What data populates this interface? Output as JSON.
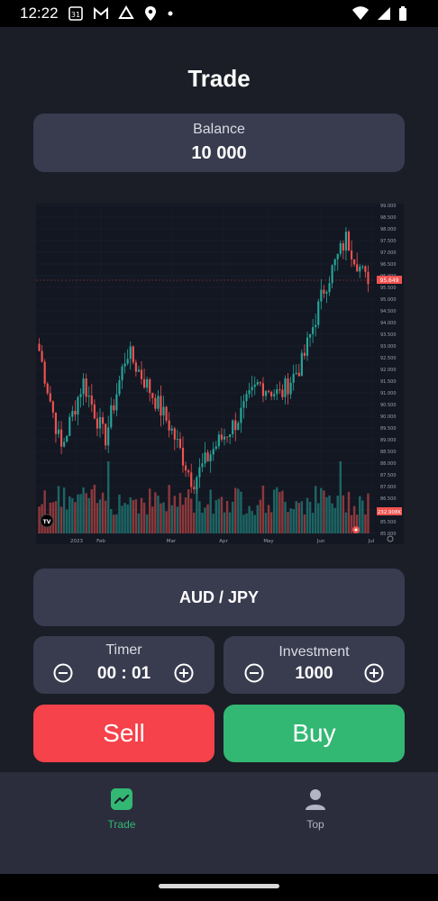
{
  "status": {
    "time": "12:22",
    "calendar_day": "31"
  },
  "page": {
    "title": "Trade"
  },
  "balance": {
    "label": "Balance",
    "value": "10 000"
  },
  "chart": {
    "price_label": "95.649",
    "volume_label": "232.908K",
    "logo_text": "TV",
    "y_ticks": [
      "99.000",
      "98.500",
      "98.000",
      "97.500",
      "97.000",
      "96.500",
      "96.000",
      "95.500",
      "95.000",
      "94.500",
      "94.000",
      "93.500",
      "93.000",
      "92.500",
      "92.000",
      "91.500",
      "91.000",
      "90.500",
      "90.000",
      "89.500",
      "89.000",
      "88.500",
      "88.000",
      "87.500",
      "87.000",
      "86.500",
      "86.000",
      "85.500",
      "85.000"
    ],
    "x_ticks": [
      "2023",
      "Feb",
      "Mar",
      "Apr",
      "May",
      "Jun",
      "Jul"
    ],
    "colors": {
      "up": "#26a69a",
      "down": "#ef5350",
      "bg": "#131722"
    }
  },
  "chart_data": {
    "type": "candlestick",
    "title": "AUD / JPY",
    "x": [
      "2023",
      "Feb",
      "Mar",
      "Apr",
      "May",
      "Jun"
    ],
    "y_range": [
      85.0,
      99.0
    ],
    "close_trajectory": [
      92.8,
      88.6,
      91.5,
      89.0,
      92.8,
      91.2,
      89.5,
      87.2,
      88.7,
      89.8,
      91.4,
      90.9,
      92.3,
      95.5,
      97.6,
      95.6
    ],
    "last_price": 95.649,
    "last_volume": "232.908K"
  },
  "pair": {
    "label": "AUD / JPY"
  },
  "timer": {
    "label": "Timer",
    "value": "00 : 01"
  },
  "investment": {
    "label": "Investment",
    "value": "1000"
  },
  "actions": {
    "sell": "Sell",
    "buy": "Buy"
  },
  "nav": {
    "trade": "Trade",
    "top": "Top",
    "active_color": "#33b873",
    "inactive_color": "#b3b5c4"
  }
}
